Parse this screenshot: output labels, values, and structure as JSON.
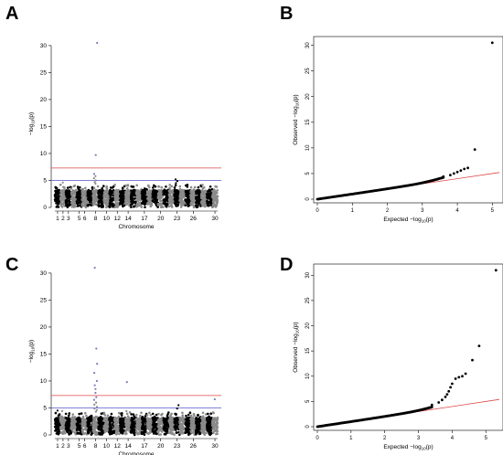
{
  "panels": [
    {
      "letter": "A"
    },
    {
      "letter": "B"
    },
    {
      "letter": "C"
    },
    {
      "letter": "D"
    }
  ],
  "colors": {
    "dark_points": "#000000",
    "light_points": "#8a8a8a",
    "highlight_points": "#7a7fb8",
    "suggestive_line": "#5555cc",
    "significance_line": "#dd4444",
    "expected_line": "#dd4444"
  },
  "chart_data": [
    {
      "id": "A",
      "type": "scatter",
      "title": "",
      "xlabel": "Chromosome",
      "ylabel": "−log10(p)",
      "ylim": [
        0,
        31
      ],
      "yticks": [
        0,
        5,
        10,
        15,
        20,
        25,
        30
      ],
      "xtick_labels": [
        "1",
        "2",
        "3",
        "5",
        "6",
        "8",
        "10",
        "12",
        "14",
        "17",
        "20",
        "23",
        "26",
        "30"
      ],
      "chromosomes": 30,
      "baseline_band_max": 3.2,
      "suggestive_threshold": 5.0,
      "significance_threshold": 7.3,
      "peaks": [
        {
          "chromosome": 8,
          "values": [
            30.5,
            9.7,
            6.2,
            5.8,
            5.4,
            5.0,
            4.7,
            4.4
          ]
        },
        {
          "chromosome": 2,
          "values": [
            4.6
          ]
        },
        {
          "chromosome": 14,
          "values": [
            4.2
          ]
        },
        {
          "chromosome": 23,
          "values": [
            5.2,
            4.9,
            4.5
          ]
        }
      ]
    },
    {
      "id": "B",
      "type": "scatter",
      "title": "",
      "xlabel": "Expected −log10(p)",
      "ylabel": "Observed −log10(p)",
      "xlim": [
        0,
        5.2
      ],
      "ylim": [
        0,
        31
      ],
      "xticks": [
        0,
        1,
        2,
        3,
        4,
        5
      ],
      "yticks": [
        0,
        5,
        10,
        15,
        20,
        25,
        30
      ],
      "reference_line": [
        [
          0,
          0
        ],
        [
          5.2,
          5.2
        ]
      ],
      "tail_points": [
        [
          3.6,
          4.4
        ],
        [
          3.8,
          4.7
        ],
        [
          3.9,
          5.0
        ],
        [
          4.0,
          5.3
        ],
        [
          4.1,
          5.6
        ],
        [
          4.2,
          5.9
        ],
        [
          4.3,
          6.1
        ],
        [
          4.5,
          9.7
        ],
        [
          5.0,
          30.5
        ]
      ]
    },
    {
      "id": "C",
      "type": "scatter",
      "title": "",
      "xlabel": "Chromosome",
      "ylabel": "−log10(p)",
      "ylim": [
        0,
        31
      ],
      "yticks": [
        0,
        5,
        10,
        15,
        20,
        25,
        30
      ],
      "xtick_labels": [
        "1",
        "2",
        "3",
        "5",
        "6",
        "8",
        "10",
        "12",
        "14",
        "17",
        "20",
        "23",
        "26",
        "30"
      ],
      "chromosomes": 30,
      "baseline_band_max": 3.2,
      "suggestive_threshold": 5.0,
      "significance_threshold": 7.3,
      "peaks": [
        {
          "chromosome": 8,
          "values": [
            31.0,
            16.0,
            13.2,
            11.5,
            10.0,
            9.2,
            8.5,
            7.8,
            7.0,
            6.5,
            6.0,
            5.6,
            5.2,
            4.9,
            4.6,
            4.3
          ]
        },
        {
          "chromosome": 1,
          "values": [
            4.5
          ]
        },
        {
          "chromosome": 2,
          "values": [
            4.4
          ]
        },
        {
          "chromosome": 14,
          "values": [
            9.8,
            4.4
          ]
        },
        {
          "chromosome": 23,
          "values": [
            5.5,
            4.9
          ]
        },
        {
          "chromosome": 30,
          "values": [
            6.6
          ]
        }
      ]
    },
    {
      "id": "D",
      "type": "scatter",
      "title": "",
      "xlabel": "Expected −log10(p)",
      "ylabel": "Observed −log10(p)",
      "xlim": [
        0,
        5.4
      ],
      "ylim": [
        0,
        31.5
      ],
      "xticks": [
        0,
        1,
        2,
        3,
        4,
        5
      ],
      "yticks": [
        0,
        5,
        10,
        15,
        20,
        25,
        30
      ],
      "reference_line": [
        [
          0,
          0
        ],
        [
          5.4,
          5.4
        ]
      ],
      "tail_points": [
        [
          3.4,
          4.3
        ],
        [
          3.6,
          4.8
        ],
        [
          3.7,
          5.3
        ],
        [
          3.8,
          5.9
        ],
        [
          3.85,
          6.4
        ],
        [
          3.9,
          7.0
        ],
        [
          3.95,
          7.8
        ],
        [
          4.0,
          8.5
        ],
        [
          4.1,
          9.5
        ],
        [
          4.2,
          9.8
        ],
        [
          4.3,
          10.0
        ],
        [
          4.4,
          10.5
        ],
        [
          4.6,
          13.2
        ],
        [
          4.8,
          16.0
        ],
        [
          5.3,
          31.0
        ]
      ]
    }
  ]
}
